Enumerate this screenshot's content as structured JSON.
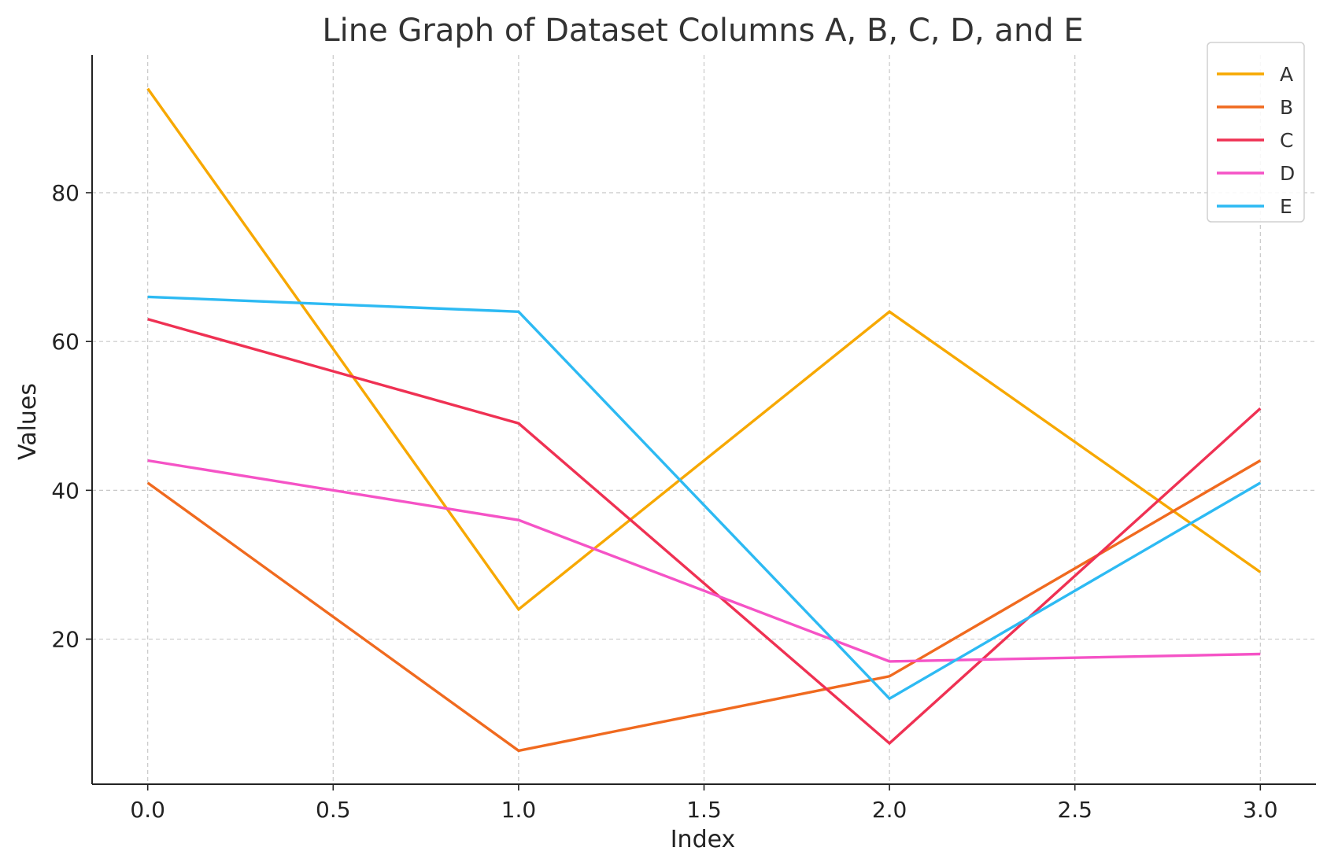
{
  "chart_data": {
    "type": "line",
    "title": "Line Graph of Dataset Columns A, B, C, D, and E",
    "xlabel": "Index",
    "ylabel": "Values",
    "x": [
      0,
      1,
      2,
      3
    ],
    "xlim": [
      -0.15,
      3.15
    ],
    "ylim": [
      0.5,
      98.5
    ],
    "xticks": [
      0.0,
      0.5,
      1.0,
      1.5,
      2.0,
      2.5,
      3.0
    ],
    "xtick_labels": [
      "0.0",
      "0.5",
      "1.0",
      "1.5",
      "2.0",
      "2.5",
      "3.0"
    ],
    "yticks": [
      20,
      40,
      60,
      80
    ],
    "ytick_labels": [
      "20",
      "40",
      "60",
      "80"
    ],
    "grid": true,
    "legend_position": "top-right",
    "series": [
      {
        "name": "A",
        "color": "#f7a800",
        "values": [
          94,
          24,
          64,
          29
        ]
      },
      {
        "name": "B",
        "color": "#f06a1f",
        "values": [
          41,
          5,
          15,
          44
        ]
      },
      {
        "name": "C",
        "color": "#ef3153",
        "values": [
          63,
          49,
          6,
          51
        ]
      },
      {
        "name": "D",
        "color": "#f553c6",
        "values": [
          44,
          36,
          17,
          18
        ]
      },
      {
        "name": "E",
        "color": "#2dbaf3",
        "values": [
          66,
          64,
          12,
          41
        ]
      }
    ]
  }
}
